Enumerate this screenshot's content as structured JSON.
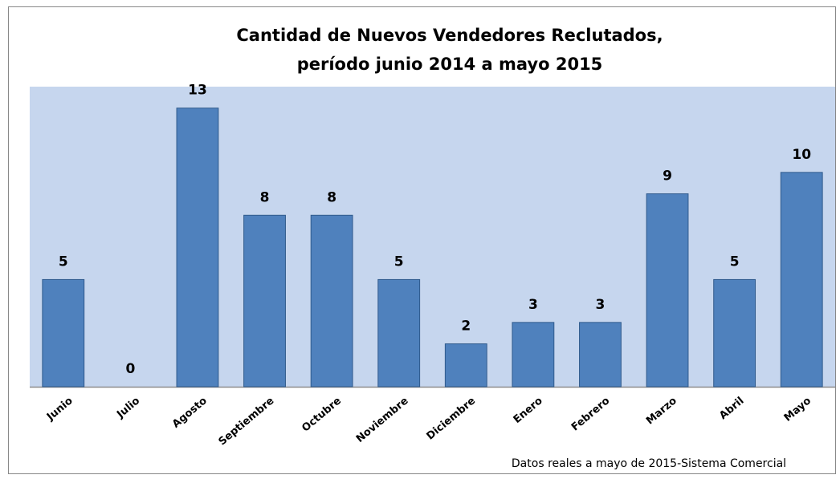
{
  "chart_data": {
    "type": "bar",
    "title": "Cantidad de Nuevos Vendedores Reclutados,",
    "subtitle": "período junio 2014 a mayo 2015",
    "categories": [
      "Junio",
      "Julio",
      "Agosto",
      "Septiembre",
      "Octubre",
      "Noviembre",
      "Diciembre",
      "Enero",
      "Febrero",
      "Marzo",
      "Abril",
      "Mayo"
    ],
    "values": [
      5,
      0,
      13,
      8,
      8,
      5,
      2,
      3,
      3,
      9,
      5,
      10
    ],
    "color": "#4f81bd",
    "ylim": [
      0,
      14
    ],
    "annotation": "Datos reales a mayo de 2015-Sistema Comercial"
  }
}
